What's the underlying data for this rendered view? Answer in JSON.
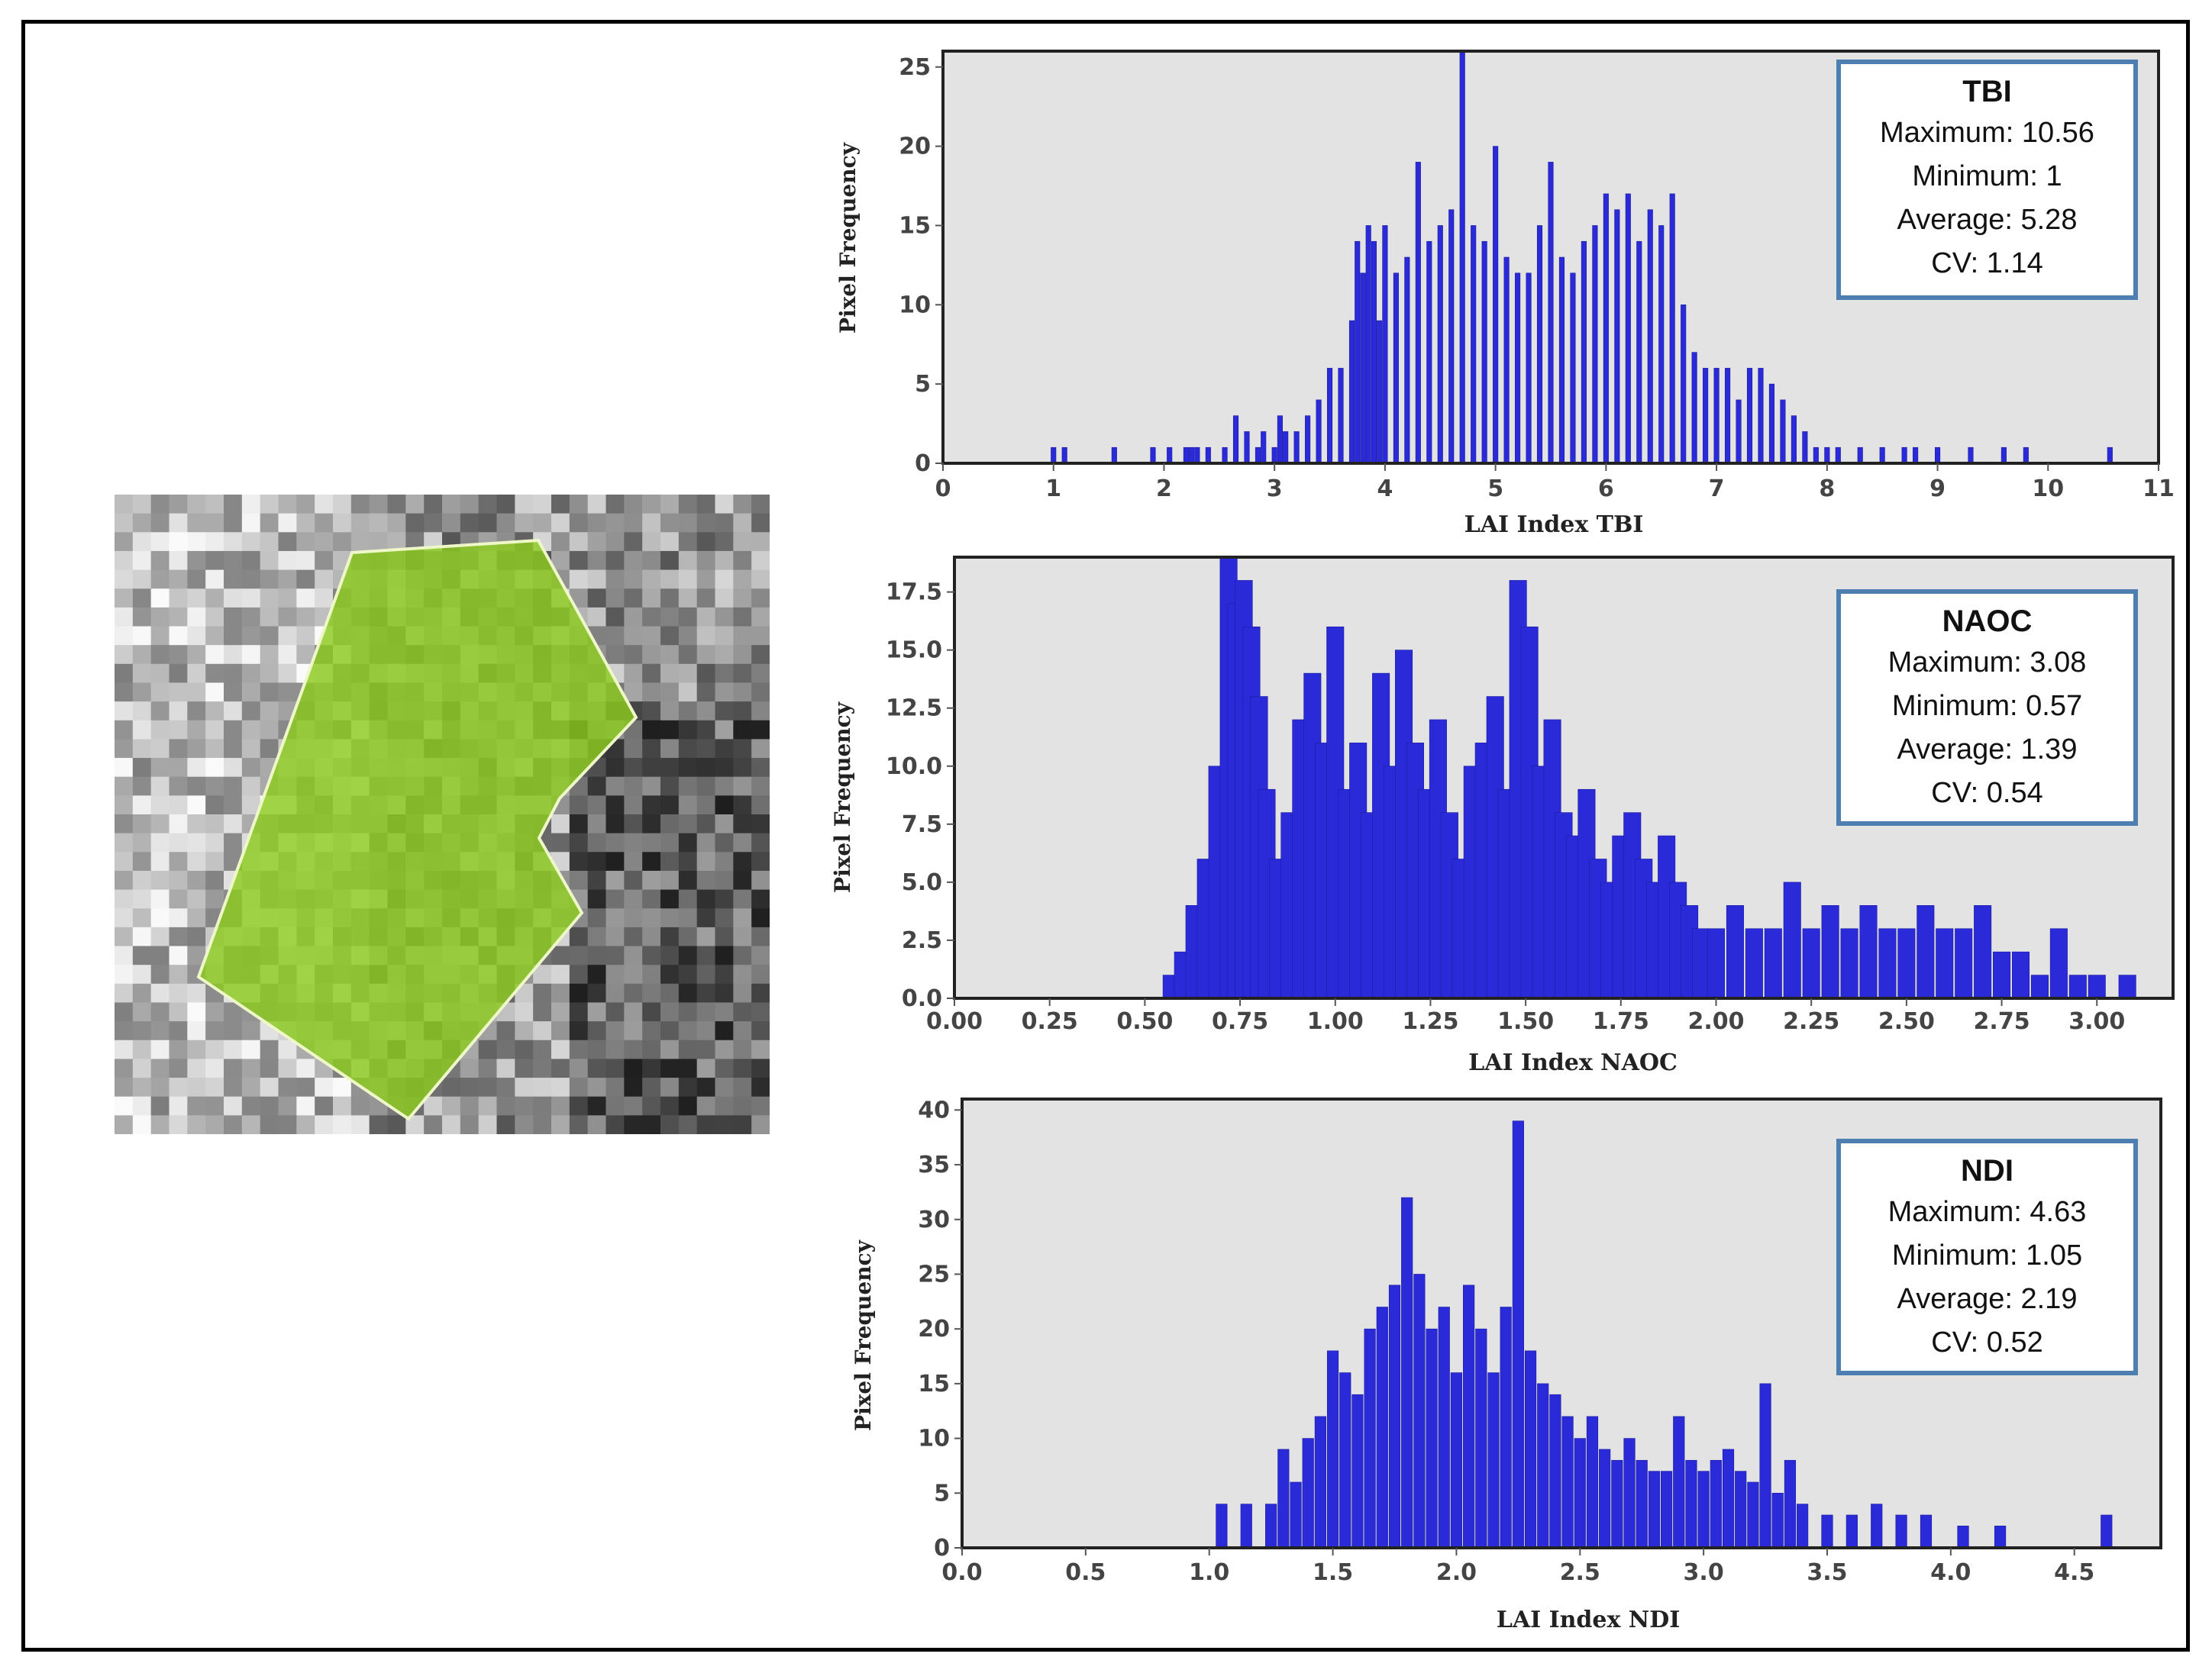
{
  "colors": {
    "bar": "#2a2ad8",
    "plot_bg": "#e3e3e3",
    "statbox_border": "#4f7fb0",
    "polygon_fill": "#8ccc1e"
  },
  "map": {
    "icon": "field-polygon-satellite-thumbnail"
  },
  "chart_data": [
    {
      "type": "bar",
      "title": "",
      "xlabel": "LAI Index TBI",
      "ylabel": "Pixel Frequency",
      "xlim": [
        0,
        11
      ],
      "ylim": [
        0,
        26
      ],
      "xticks": [
        "0",
        "1",
        "2",
        "3",
        "4",
        "5",
        "6",
        "7",
        "8",
        "9",
        "10",
        "11"
      ],
      "yticks": [
        "0",
        "5",
        "10",
        "15",
        "20",
        "25"
      ],
      "legend": {
        "title": "TBI",
        "lines": [
          "Maximum: 10.56",
          "Minimum: 1",
          "Average: 5.28",
          "CV: 1.14"
        ]
      },
      "x": [
        1,
        1.1,
        1.55,
        1.9,
        2.05,
        2.2,
        2.25,
        2.3,
        2.4,
        2.55,
        2.65,
        2.75,
        2.85,
        2.9,
        3,
        3.05,
        3.1,
        3.2,
        3.3,
        3.4,
        3.5,
        3.6,
        3.7,
        3.75,
        3.8,
        3.85,
        3.9,
        3.95,
        4,
        4.1,
        4.2,
        4.3,
        4.4,
        4.5,
        4.6,
        4.7,
        4.8,
        4.9,
        5,
        5.1,
        5.2,
        5.3,
        5.4,
        5.5,
        5.6,
        5.7,
        5.8,
        5.9,
        6,
        6.1,
        6.2,
        6.3,
        6.4,
        6.5,
        6.6,
        6.7,
        6.8,
        6.9,
        7,
        7.1,
        7.2,
        7.3,
        7.4,
        7.5,
        7.6,
        7.7,
        7.8,
        7.9,
        8,
        8.1,
        8.3,
        8.5,
        8.7,
        8.8,
        9,
        9.3,
        9.6,
        9.8,
        10.56
      ],
      "values": [
        1,
        1,
        1,
        1,
        1,
        1,
        1,
        1,
        1,
        1,
        3,
        2,
        1,
        2,
        1,
        3,
        2,
        2,
        3,
        4,
        6,
        6,
        9,
        14,
        12,
        15,
        14,
        9,
        15,
        12,
        13,
        19,
        14,
        15,
        16,
        26,
        15,
        14,
        20,
        13,
        12,
        12,
        15,
        19,
        13,
        12,
        14,
        15,
        17,
        16,
        17,
        14,
        16,
        15,
        17,
        10,
        7,
        6,
        6,
        6,
        4,
        6,
        6,
        5,
        4,
        3,
        2,
        1,
        1,
        1,
        1,
        1,
        1,
        1,
        1,
        1,
        1,
        1,
        1
      ]
    },
    {
      "type": "bar",
      "title": "",
      "xlabel": "LAI Index NAOC",
      "ylabel": "Pixel Frequency",
      "xlim": [
        0,
        3.2
      ],
      "ylim": [
        0,
        19
      ],
      "xticks": [
        "0.00",
        "0.25",
        "0.50",
        "0.75",
        "1.00",
        "1.25",
        "1.50",
        "1.75",
        "2.00",
        "2.25",
        "2.50",
        "2.75",
        "3.00"
      ],
      "yticks": [
        "0.0",
        "2.5",
        "5.0",
        "7.5",
        "10.0",
        "12.5",
        "15.0",
        "17.5"
      ],
      "legend": {
        "title": "NAOC",
        "lines": [
          "Maximum: 3.08",
          "Minimum: 0.57",
          "Average: 1.39",
          "CV: 0.54"
        ]
      },
      "x": [
        0.57,
        0.6,
        0.63,
        0.66,
        0.69,
        0.72,
        0.74,
        0.76,
        0.78,
        0.8,
        0.82,
        0.85,
        0.88,
        0.91,
        0.94,
        0.97,
        1,
        1.03,
        1.06,
        1.09,
        1.12,
        1.15,
        1.18,
        1.21,
        1.24,
        1.27,
        1.3,
        1.33,
        1.36,
        1.39,
        1.42,
        1.45,
        1.48,
        1.51,
        1.54,
        1.57,
        1.6,
        1.63,
        1.66,
        1.69,
        1.72,
        1.75,
        1.78,
        1.81,
        1.84,
        1.87,
        1.9,
        1.93,
        1.96,
        2,
        2.05,
        2.1,
        2.15,
        2.2,
        2.25,
        2.3,
        2.35,
        2.4,
        2.45,
        2.5,
        2.55,
        2.6,
        2.65,
        2.7,
        2.75,
        2.8,
        2.85,
        2.9,
        2.95,
        3,
        3.08
      ],
      "values": [
        1,
        2,
        4,
        6,
        10,
        19,
        17,
        18,
        16,
        13,
        9,
        6,
        8,
        12,
        14,
        11,
        16,
        9,
        11,
        8,
        14,
        10,
        15,
        11,
        9,
        12,
        8,
        6,
        10,
        11,
        13,
        9,
        18,
        16,
        10,
        12,
        8,
        7,
        9,
        6,
        5,
        7,
        8,
        6,
        5,
        7,
        5,
        4,
        3,
        3,
        4,
        3,
        3,
        5,
        3,
        4,
        3,
        4,
        3,
        3,
        4,
        3,
        3,
        4,
        2,
        2,
        1,
        3,
        1,
        1,
        1
      ]
    },
    {
      "type": "bar",
      "title": "",
      "xlabel": "LAI Index NDI",
      "ylabel": "Pixel Frequency",
      "xlim": [
        0,
        4.85
      ],
      "ylim": [
        0,
        41
      ],
      "xticks": [
        "0.0",
        "0.5",
        "1.0",
        "1.5",
        "2.0",
        "2.5",
        "3.0",
        "3.5",
        "4.0",
        "4.5"
      ],
      "yticks": [
        "0",
        "5",
        "10",
        "15",
        "20",
        "25",
        "30",
        "35",
        "40"
      ],
      "legend": {
        "title": "NDI",
        "lines": [
          "Maximum: 4.63",
          "Minimum: 1.05",
          "Average: 2.19",
          "CV: 0.52"
        ]
      },
      "x": [
        1.05,
        1.15,
        1.25,
        1.3,
        1.35,
        1.4,
        1.45,
        1.5,
        1.55,
        1.6,
        1.65,
        1.7,
        1.75,
        1.8,
        1.85,
        1.9,
        1.95,
        2,
        2.05,
        2.1,
        2.15,
        2.2,
        2.25,
        2.3,
        2.35,
        2.4,
        2.45,
        2.5,
        2.55,
        2.6,
        2.65,
        2.7,
        2.75,
        2.8,
        2.85,
        2.9,
        2.95,
        3,
        3.05,
        3.1,
        3.15,
        3.2,
        3.25,
        3.3,
        3.35,
        3.4,
        3.5,
        3.6,
        3.7,
        3.8,
        3.9,
        4.05,
        4.2,
        4.63
      ],
      "values": [
        4,
        4,
        4,
        9,
        6,
        10,
        12,
        18,
        16,
        14,
        20,
        22,
        24,
        32,
        25,
        20,
        22,
        16,
        24,
        20,
        16,
        22,
        39,
        18,
        15,
        14,
        12,
        10,
        12,
        9,
        8,
        10,
        8,
        7,
        7,
        12,
        8,
        7,
        8,
        9,
        7,
        6,
        15,
        5,
        8,
        4,
        3,
        3,
        4,
        3,
        3,
        2,
        2,
        3
      ]
    }
  ]
}
